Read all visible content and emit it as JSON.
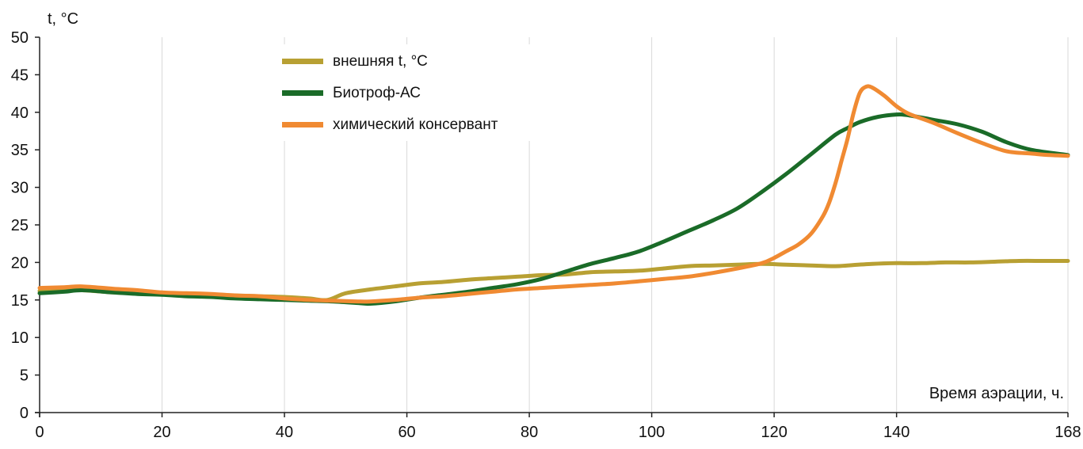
{
  "chart_data": {
    "type": "line",
    "ylabel": "t, °C",
    "xlabel": "Время аэрации, ч.",
    "xlim": [
      0,
      168
    ],
    "ylim": [
      0,
      50
    ],
    "x_ticks": [
      0,
      20,
      40,
      60,
      80,
      100,
      120,
      140,
      168
    ],
    "y_ticks": [
      0,
      5,
      10,
      15,
      20,
      25,
      30,
      35,
      40,
      45,
      50
    ],
    "grid": "vertical",
    "legend_position": "top-center",
    "series": [
      {
        "name": "внешняя t, °С",
        "color": "#b8a033",
        "x": [
          0,
          4,
          7,
          12,
          16,
          20,
          24,
          28,
          32,
          36,
          40,
          44,
          47,
          50,
          54,
          58,
          62,
          66,
          70,
          74,
          78,
          82,
          86,
          90,
          94,
          98,
          102,
          106,
          110,
          114,
          118,
          122,
          126,
          130,
          132,
          136,
          140,
          144,
          148,
          152,
          156,
          160,
          164,
          168
        ],
        "y": [
          16.2,
          16.3,
          16.3,
          16.0,
          15.9,
          15.8,
          15.7,
          15.7,
          15.6,
          15.5,
          15.4,
          15.2,
          15.0,
          15.9,
          16.4,
          16.8,
          17.2,
          17.4,
          17.7,
          17.9,
          18.1,
          18.3,
          18.4,
          18.7,
          18.8,
          18.9,
          19.2,
          19.5,
          19.6,
          19.7,
          19.8,
          19.7,
          19.6,
          19.5,
          19.6,
          19.8,
          19.9,
          19.9,
          20.0,
          20.0,
          20.1,
          20.2,
          20.2,
          20.2
        ]
      },
      {
        "name": "Биотроф-АС",
        "color": "#1a6b28",
        "x": [
          0,
          4,
          7,
          12,
          16,
          20,
          24,
          28,
          32,
          36,
          40,
          44,
          48,
          52,
          54,
          58,
          62,
          66,
          70,
          74,
          78,
          82,
          86,
          90,
          94,
          98,
          102,
          106,
          110,
          114,
          118,
          122,
          126,
          130,
          132,
          134,
          137,
          140,
          142,
          146,
          150,
          154,
          158,
          162,
          168
        ],
        "y": [
          15.9,
          16.1,
          16.3,
          16.0,
          15.8,
          15.7,
          15.5,
          15.4,
          15.2,
          15.1,
          15.0,
          14.9,
          14.8,
          14.6,
          14.5,
          14.8,
          15.3,
          15.7,
          16.1,
          16.6,
          17.1,
          17.8,
          18.8,
          19.8,
          20.6,
          21.5,
          22.8,
          24.2,
          25.6,
          27.2,
          29.4,
          31.8,
          34.4,
          37.0,
          37.9,
          38.7,
          39.4,
          39.7,
          39.6,
          39.0,
          38.4,
          37.4,
          36.0,
          35.0,
          34.3
        ]
      },
      {
        "name": "химический консервант",
        "color": "#f08a32",
        "x": [
          0,
          4,
          7,
          12,
          16,
          20,
          24,
          28,
          32,
          36,
          40,
          44,
          48,
          52,
          54,
          58,
          62,
          66,
          70,
          74,
          78,
          82,
          86,
          90,
          94,
          98,
          102,
          106,
          110,
          114,
          118,
          120,
          122,
          124,
          126,
          128,
          129,
          130,
          131,
          132,
          133,
          134,
          135,
          136,
          138,
          140,
          142,
          146,
          150,
          154,
          158,
          162,
          165,
          168
        ],
        "y": [
          16.6,
          16.7,
          16.8,
          16.5,
          16.3,
          16.0,
          15.9,
          15.8,
          15.6,
          15.5,
          15.2,
          15.0,
          14.9,
          14.8,
          14.8,
          15.0,
          15.3,
          15.5,
          15.8,
          16.1,
          16.4,
          16.6,
          16.8,
          17.0,
          17.2,
          17.5,
          17.8,
          18.1,
          18.6,
          19.2,
          19.9,
          20.6,
          21.5,
          22.4,
          23.8,
          26.2,
          28.0,
          30.5,
          33.5,
          36.5,
          40.0,
          42.6,
          43.4,
          43.3,
          42.2,
          40.8,
          39.8,
          38.6,
          37.2,
          35.9,
          34.8,
          34.5,
          34.3,
          34.2
        ]
      }
    ]
  }
}
